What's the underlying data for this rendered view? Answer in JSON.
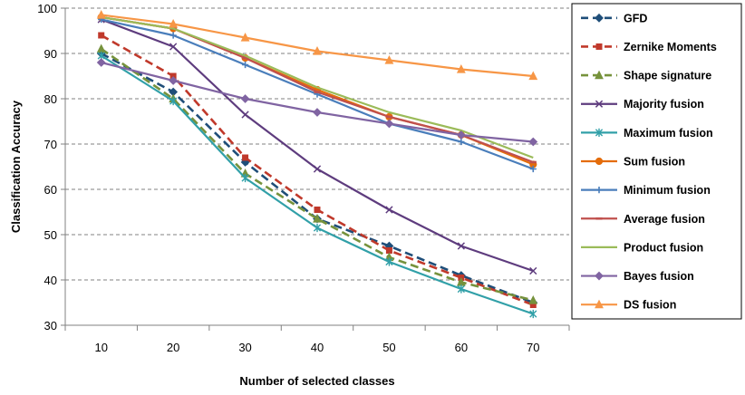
{
  "chart_data": {
    "type": "line",
    "title": "",
    "xlabel": "Number of selected classes",
    "ylabel": "Classification Accuracy",
    "x": [
      10,
      20,
      30,
      40,
      50,
      60,
      70
    ],
    "x_tick_labels": [
      "10",
      "20",
      "30",
      "40",
      "50",
      "60",
      "70"
    ],
    "ylim": [
      30,
      100
    ],
    "y_ticks": [
      30,
      40,
      50,
      60,
      70,
      80,
      90,
      100
    ],
    "y_tick_labels": [
      "30",
      "40",
      "50",
      "60",
      "70",
      "80",
      "90",
      "100"
    ],
    "grid": "horizontal dashed",
    "legend_position": "right",
    "series": [
      {
        "name": "GFD",
        "color": "#1f4e79",
        "dashed": true,
        "marker": "diamond",
        "values": [
          90,
          81.5,
          66,
          53.5,
          47.5,
          41,
          35
        ]
      },
      {
        "name": "Zernike Moments",
        "color": "#c0392b",
        "dashed": true,
        "marker": "square",
        "values": [
          94,
          85,
          67,
          55.5,
          46.5,
          40.5,
          34.5
        ]
      },
      {
        "name": "Shape signature",
        "color": "#76923c",
        "dashed": true,
        "marker": "triangle",
        "values": [
          91,
          80,
          63.5,
          53.5,
          45,
          39.5,
          35.5
        ]
      },
      {
        "name": "Majority fusion",
        "color": "#5e3c7e",
        "dashed": false,
        "marker": "x",
        "values": [
          97.5,
          91.5,
          76.5,
          64.5,
          55.5,
          47.5,
          42
        ]
      },
      {
        "name": "Maximum fusion",
        "color": "#31a0a8",
        "dashed": false,
        "marker": "asterisk",
        "values": [
          89.5,
          79.5,
          62.5,
          51.5,
          44,
          38,
          32.5
        ]
      },
      {
        "name": "Sum fusion",
        "color": "#e46c0a",
        "dashed": false,
        "marker": "circle",
        "values": [
          98,
          95.5,
          89,
          82,
          76,
          72,
          65.5
        ]
      },
      {
        "name": "Minimum fusion",
        "color": "#4a7ebb",
        "dashed": false,
        "marker": "plus",
        "values": [
          97.5,
          94,
          87.5,
          81,
          74.5,
          70.5,
          64.5
        ]
      },
      {
        "name": "Average fusion",
        "color": "#c0504d",
        "dashed": false,
        "marker": "dash",
        "values": [
          98,
          95.5,
          89,
          81.5,
          76,
          72,
          66
        ]
      },
      {
        "name": "Product fusion",
        "color": "#9bbb59",
        "dashed": false,
        "marker": "none",
        "values": [
          98,
          95.5,
          89.5,
          82.5,
          77,
          73,
          67
        ]
      },
      {
        "name": "Bayes fusion",
        "color": "#8064a2",
        "dashed": false,
        "marker": "diamond",
        "values": [
          88,
          84,
          80,
          77,
          74.5,
          72,
          70.5
        ]
      },
      {
        "name": "DS fusion",
        "color": "#f79646",
        "dashed": false,
        "marker": "triangle",
        "values": [
          98.5,
          96.5,
          93.5,
          90.5,
          88.5,
          86.5,
          85
        ]
      }
    ]
  }
}
